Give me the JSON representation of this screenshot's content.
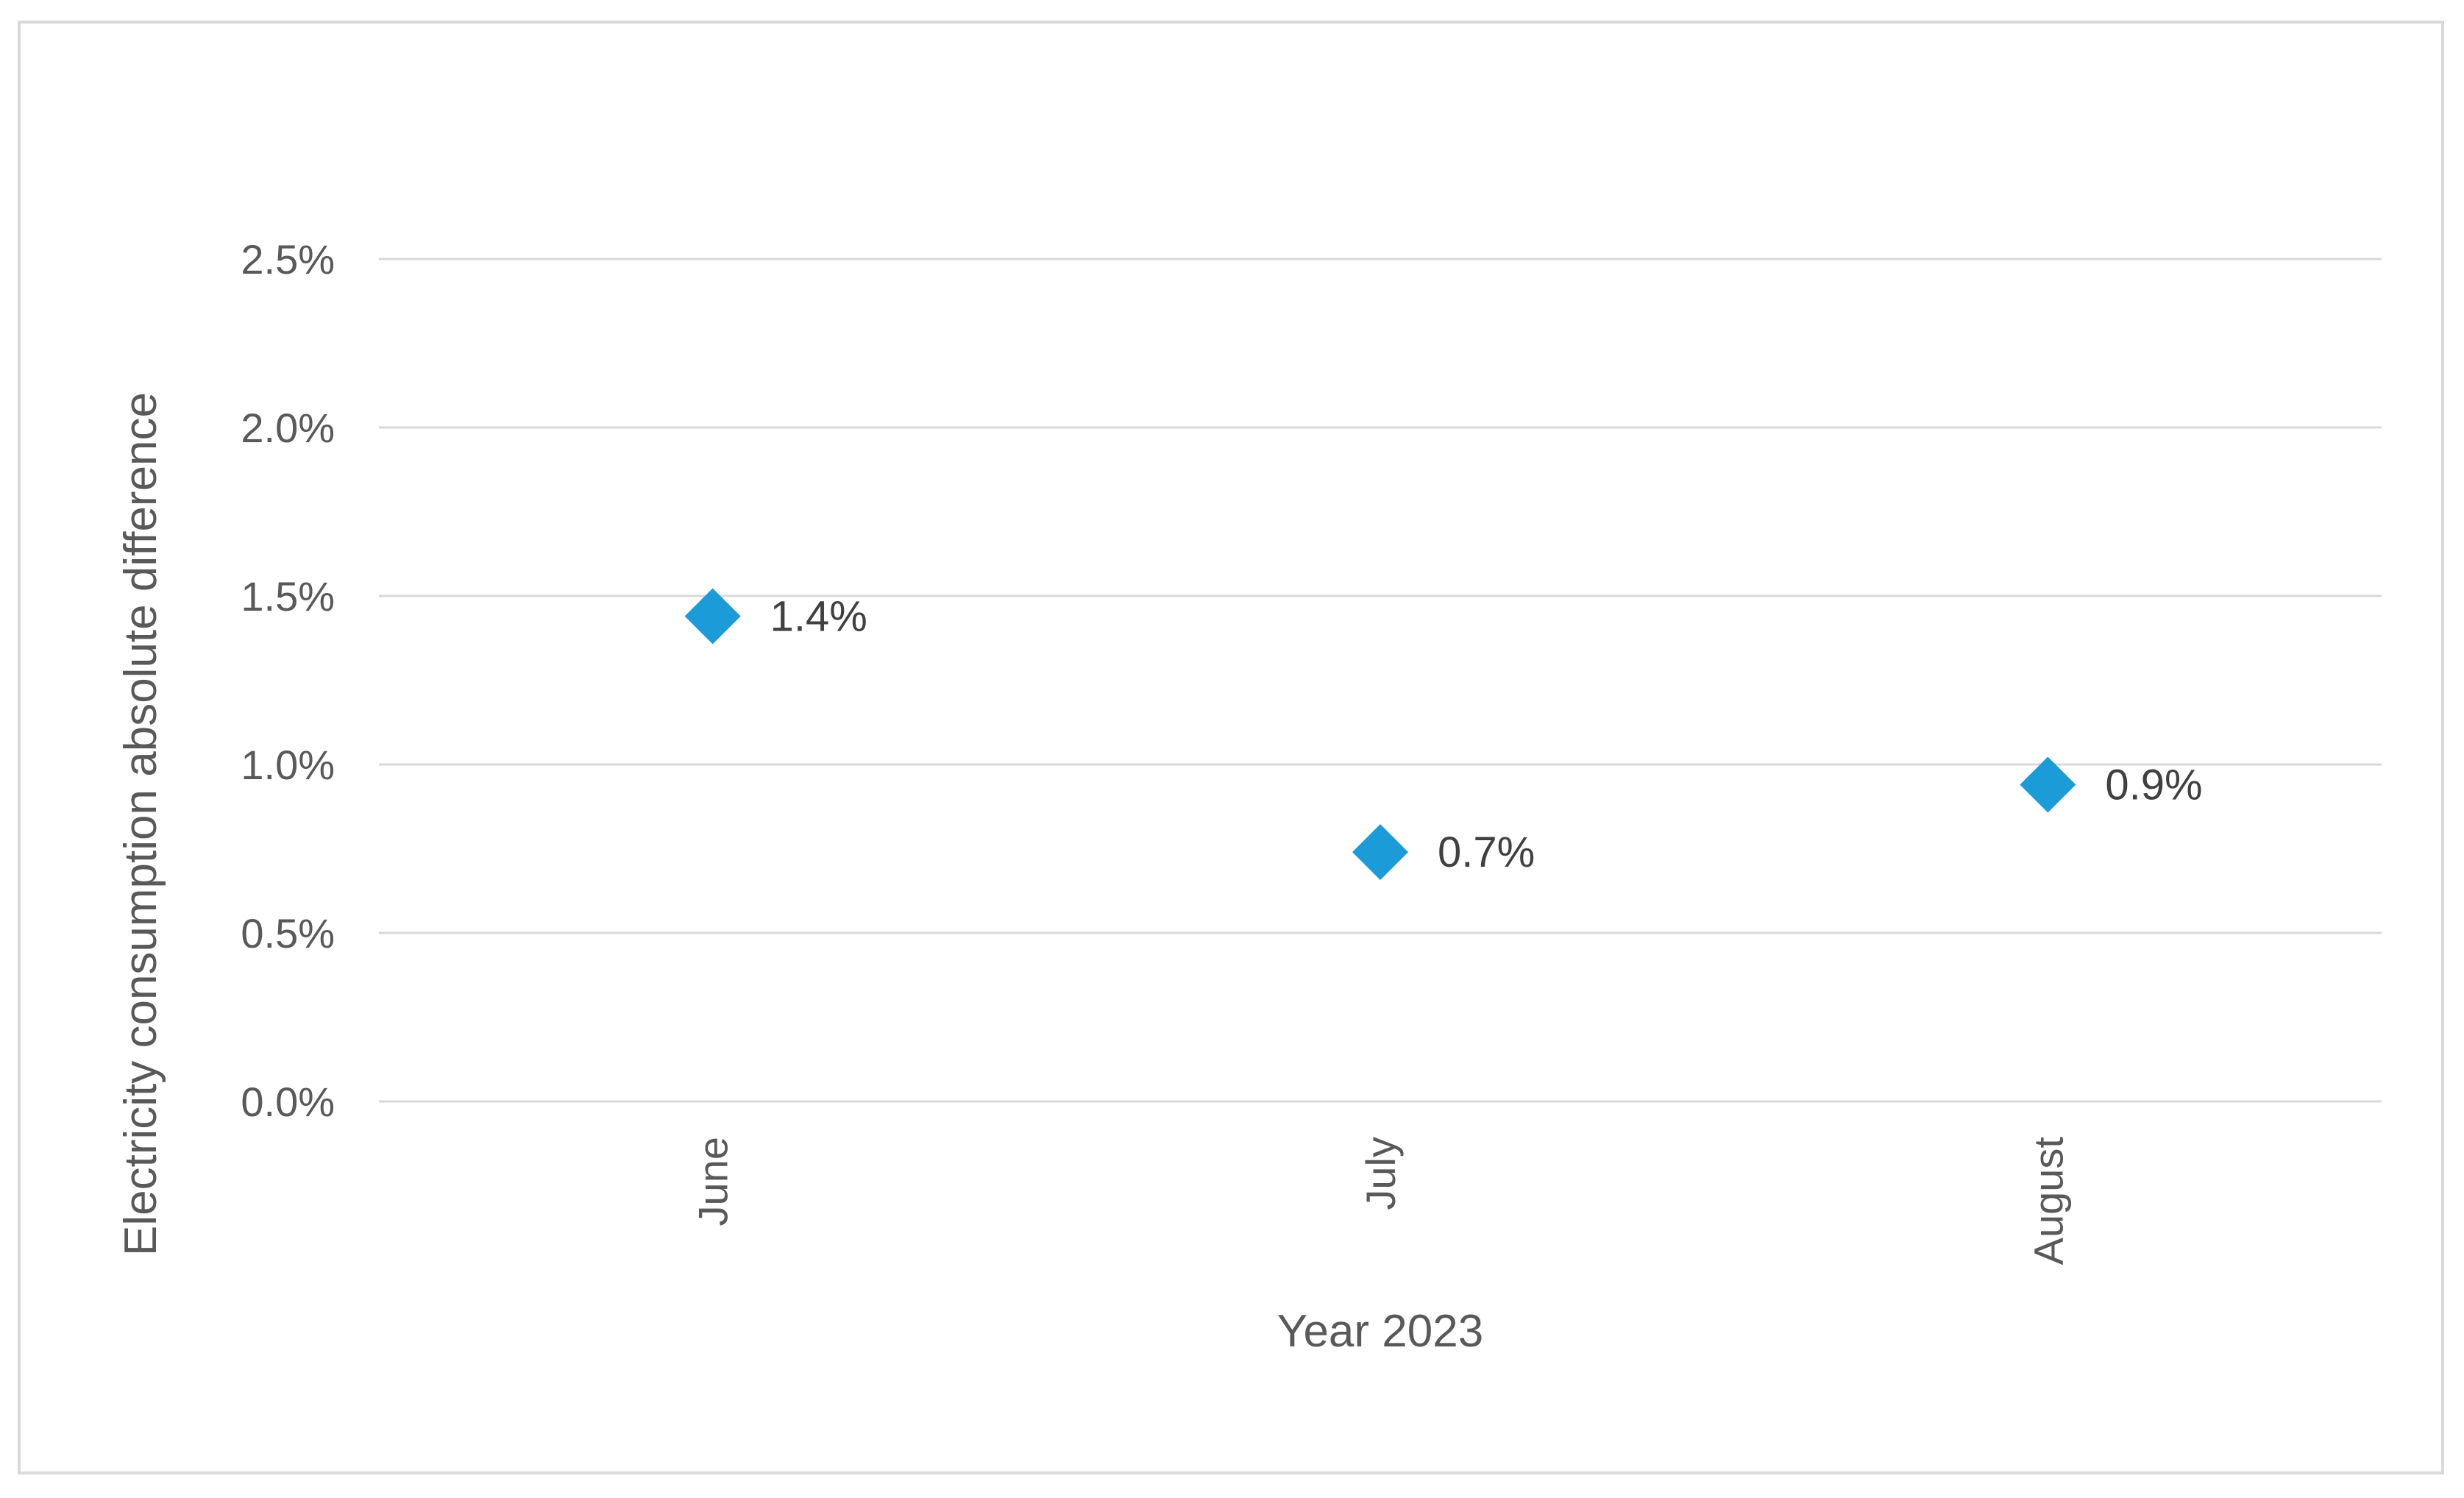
{
  "chart_data": {
    "type": "scatter",
    "title": "",
    "xlabel": "Year 2023",
    "ylabel": "Electricity consumption absolute difference",
    "categories": [
      "June",
      "July",
      "August"
    ],
    "series": [
      {
        "values": [
          1.44,
          0.74,
          0.94
        ],
        "data_labels": [
          "1.4%",
          "0.7%",
          "0.9%"
        ],
        "marker": "diamond",
        "color": "#1b9bd7"
      }
    ],
    "ylim": [
      0,
      2.5
    ],
    "yticks": [
      0,
      0.5,
      1.0,
      1.5,
      2.0,
      2.5
    ],
    "ytick_labels": [
      "0.0%",
      "0.5%",
      "1.0%",
      "1.5%",
      "2.0%",
      "2.5%"
    ],
    "grid": true,
    "legend": "none",
    "colors": {
      "marker": "#1b9bd7",
      "grid": "#d9d9d9",
      "text": "#595959"
    }
  }
}
